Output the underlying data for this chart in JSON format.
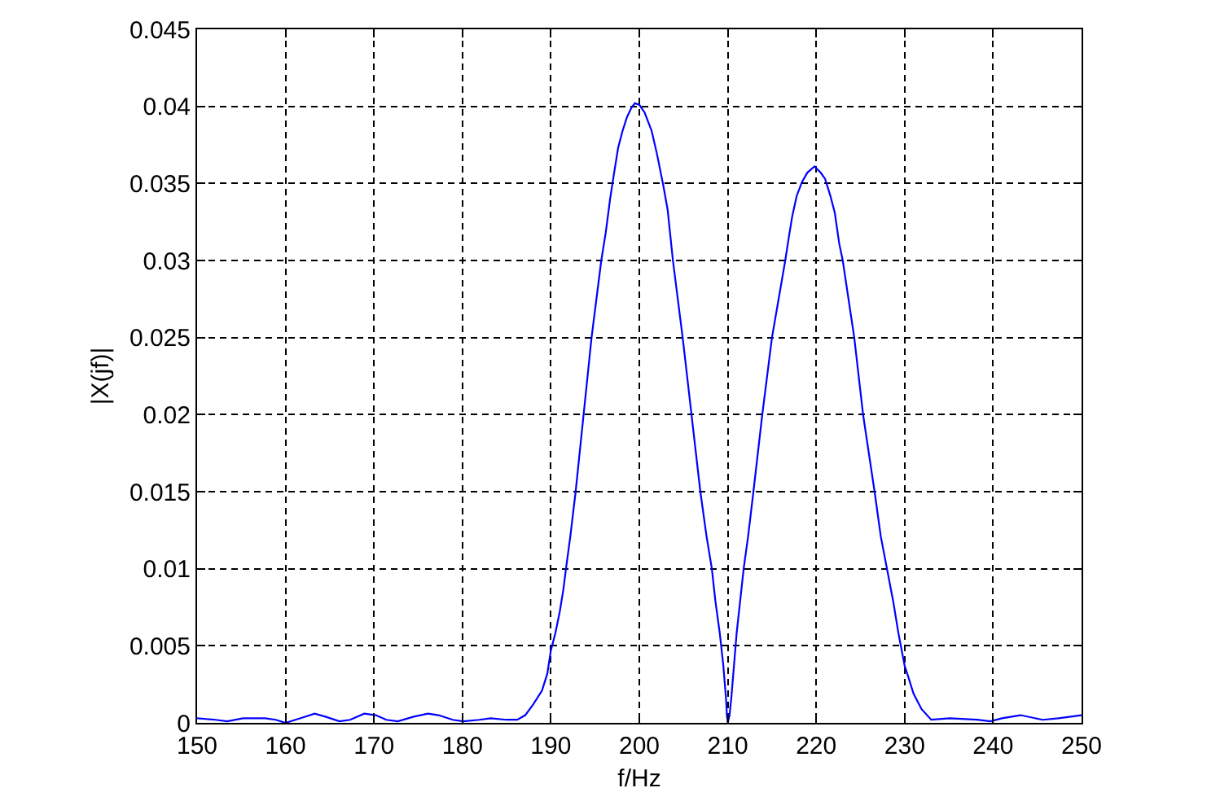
{
  "chart_data": {
    "type": "line",
    "xlabel": "f/Hz",
    "ylabel": "|X(jf)|",
    "color": "#0000ff",
    "line_style": "solid",
    "grid": true,
    "x": [
      150,
      152.1,
      153.4,
      155.2,
      157.7,
      158.9,
      160,
      161.7,
      163.3,
      164.5,
      166.1,
      167.3,
      168.9,
      170.2,
      171.4,
      172.7,
      174.5,
      176.1,
      177.3,
      178.9,
      180.1,
      181.9,
      183.2,
      185,
      186.2,
      187.1,
      188,
      189,
      189.6,
      190,
      190.5,
      191,
      191.4,
      191.8,
      192.2,
      192.8,
      193.7,
      194.6,
      195.7,
      196.2,
      196.7,
      197.1,
      197.6,
      198.1,
      198.6,
      199.1,
      199.5,
      200,
      200.6,
      201.4,
      202,
      202.7,
      203.2,
      203.8,
      204.9,
      205.9,
      206.9,
      207.6,
      208.2,
      208.6,
      209.1,
      209.5,
      209.8,
      209.9,
      210,
      210.2,
      210.4,
      210.7,
      211,
      211.4,
      211.8,
      212.3,
      212.9,
      213.9,
      215,
      216.5,
      216.9,
      217.3,
      217.8,
      218.4,
      219,
      219.8,
      220.5,
      221,
      221.6,
      222.1,
      222.6,
      223,
      224.3,
      225.3,
      226.6,
      227.3,
      228,
      228.7,
      229.3,
      230,
      230.4,
      231,
      231.9,
      233,
      235.1,
      238.2,
      239.7,
      241,
      243.1,
      245.6,
      247.4,
      250
    ],
    "values": [
      0.0003,
      0.0002,
      0.0001,
      0.0003,
      0.0003,
      0.0002,
      0,
      0.0003,
      0.0006,
      0.0004,
      0.0001,
      0.0002,
      0.0006,
      0.0005,
      0.0002,
      0.0001,
      0.0004,
      0.0006,
      0.0005,
      0.0002,
      0.0001,
      0.0002,
      0.0003,
      0.0002,
      0.0002,
      0.0005,
      0.0012,
      0.0021,
      0.0032,
      0.0047,
      0.0058,
      0.0072,
      0.0086,
      0.0104,
      0.0121,
      0.015,
      0.02,
      0.025,
      0.03,
      0.0318,
      0.034,
      0.0355,
      0.0373,
      0.0384,
      0.0393,
      0.0399,
      0.0402,
      0.0401,
      0.0396,
      0.0384,
      0.0369,
      0.0349,
      0.0333,
      0.03,
      0.025,
      0.02,
      0.015,
      0.0121,
      0.01,
      0.0079,
      0.0058,
      0.0037,
      0.0016,
      0.0005,
      0,
      0.0005,
      0.0016,
      0.0037,
      0.0058,
      0.0079,
      0.01,
      0.0121,
      0.015,
      0.02,
      0.025,
      0.03,
      0.0315,
      0.0329,
      0.0342,
      0.0351,
      0.0357,
      0.0361,
      0.0357,
      0.0353,
      0.0342,
      0.0331,
      0.0311,
      0.03,
      0.025,
      0.02,
      0.015,
      0.0121,
      0.01,
      0.0079,
      0.0058,
      0.0037,
      0.003,
      0.0019,
      0.0009,
      0.0002,
      0.0003,
      0.0002,
      0.0001,
      0.0003,
      0.0005,
      0.0002,
      0.0003,
      0.0005
    ],
    "xlim": [
      150,
      250
    ],
    "xticks": [
      150,
      160,
      170,
      180,
      190,
      200,
      210,
      220,
      230,
      240,
      250
    ],
    "ylim": [
      0,
      0.045
    ],
    "yticks": [
      0,
      0.005,
      0.01,
      0.015,
      0.02,
      0.025,
      0.03,
      0.035,
      0.04,
      0.045
    ]
  }
}
